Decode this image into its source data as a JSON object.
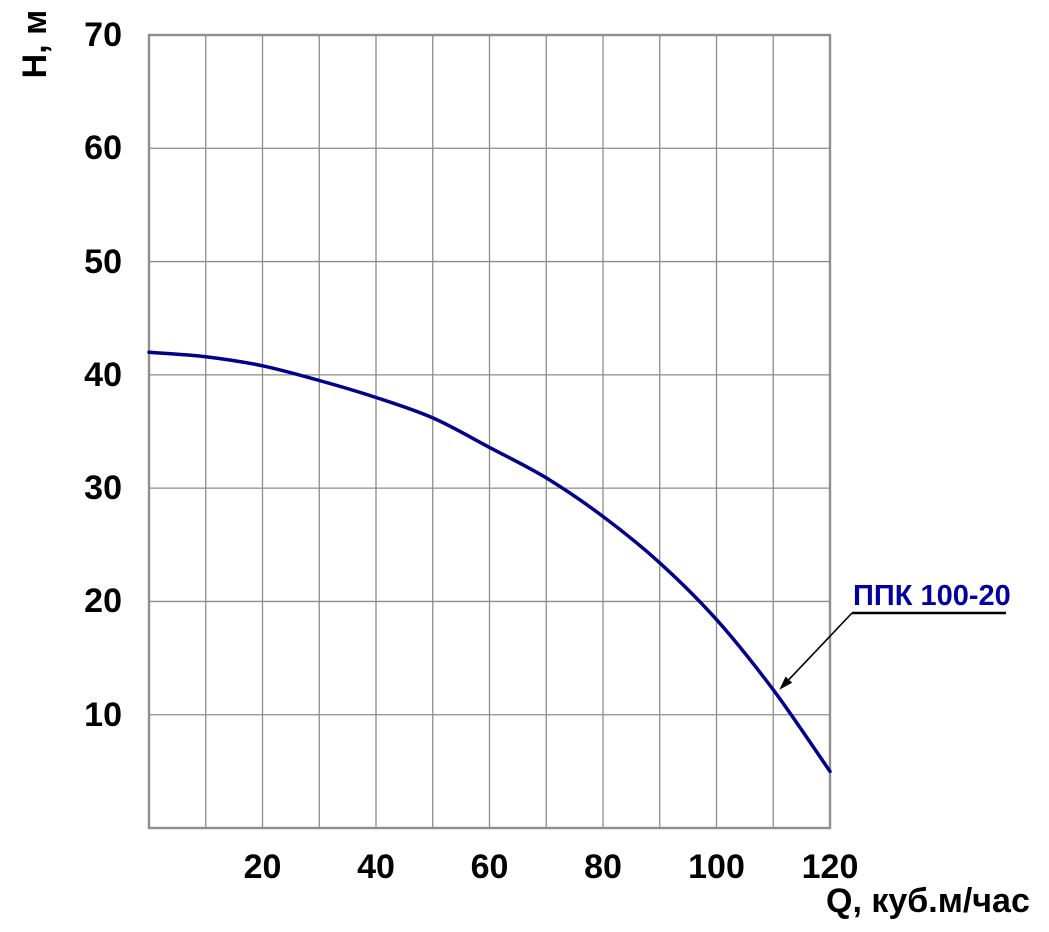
{
  "chart_data": {
    "type": "line",
    "title": "",
    "xlabel": "Q, куб.м/час",
    "ylabel": "Н, м",
    "xlim": [
      0,
      120
    ],
    "ylim": [
      0,
      70
    ],
    "x_ticks": [
      20,
      40,
      60,
      80,
      100,
      120
    ],
    "y_ticks": [
      10,
      20,
      30,
      40,
      50,
      60,
      70
    ],
    "x_grid_step": 10,
    "y_grid_step": 10,
    "grid": true,
    "legend_position": "annotation-with-arrow",
    "series": [
      {
        "name": "ППК 100-20",
        "color": "#00008B",
        "points": [
          [
            0,
            42.0
          ],
          [
            10,
            41.6
          ],
          [
            20,
            40.8
          ],
          [
            30,
            39.5
          ],
          [
            40,
            38.0
          ],
          [
            50,
            36.2
          ],
          [
            60,
            33.6
          ],
          [
            70,
            30.9
          ],
          [
            80,
            27.5
          ],
          [
            90,
            23.4
          ],
          [
            100,
            18.4
          ],
          [
            110,
            12.2
          ],
          [
            120,
            5.0
          ]
        ]
      }
    ]
  },
  "annotation": {
    "label": "ППК 100-20",
    "color": "#0000A0",
    "arrow_target": {
      "q": 110,
      "h": 12.2
    }
  },
  "colors": {
    "grid": "#8c8c8c",
    "border": "#8f8f8f",
    "curve": "#00008B",
    "text": "#000000",
    "annotation_line": "#000000",
    "background": "#ffffff"
  }
}
